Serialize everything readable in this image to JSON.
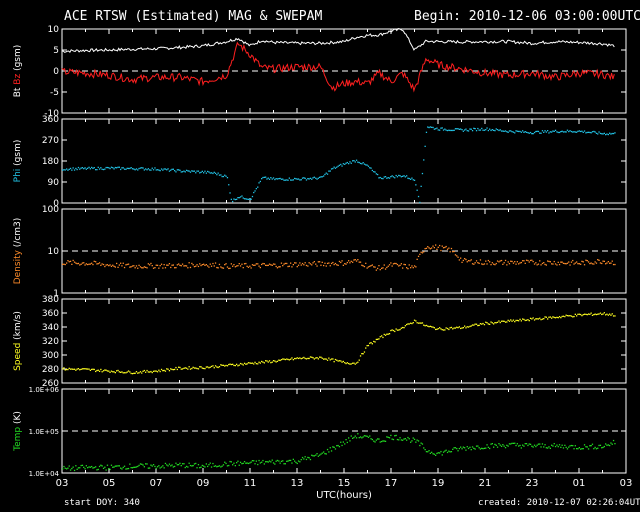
{
  "header": {
    "title": "ACE RTSW (Estimated) MAG & SWEPAM",
    "begin": "Begin: 2010-12-06 03:00:00UTC"
  },
  "footer": {
    "start_doy": "start DOY: 340",
    "created": "created: 2010-12-07 02:26:04UTC"
  },
  "colors": {
    "bt": "#ffffff",
    "bz": "#ff2020",
    "phi": "#22c3e6",
    "density": "#ff8c2a",
    "speed": "#ffff20",
    "temp": "#22dd22",
    "axis": "#ffffff",
    "dash": "#ffffff"
  },
  "chart_data": [
    {
      "type": "line",
      "panel": "mag",
      "ylabel_parts": [
        "Bt",
        "Bz",
        "(gsm)"
      ],
      "ylim": [
        -10,
        10
      ],
      "yticks": [
        "10",
        "5",
        "0",
        "-5",
        "-10"
      ],
      "yvals": [
        10,
        5,
        0,
        -5,
        -10
      ],
      "dashed_y": 0,
      "series": [
        {
          "name": "Bt",
          "x": [
            3,
            4,
            5,
            6,
            7,
            8,
            9,
            10,
            10.5,
            11,
            11.5,
            12,
            13,
            14,
            15,
            15.5,
            16,
            16.5,
            17,
            17.5,
            18,
            18.5,
            19,
            20,
            21,
            22,
            23,
            24,
            25,
            26,
            26.5
          ],
          "y": [
            4.7,
            4.9,
            5.0,
            5.2,
            5.3,
            5.6,
            6.0,
            7.0,
            7.8,
            6.0,
            7.3,
            6.8,
            6.6,
            6.6,
            7.0,
            8.0,
            8.5,
            8.6,
            9.5,
            10.0,
            5.0,
            7.1,
            7.0,
            6.9,
            7.0,
            7.0,
            6.6,
            7.0,
            6.8,
            6.5,
            6.0
          ]
        },
        {
          "name": "Bz",
          "x": [
            3,
            4,
            5,
            6,
            7,
            8,
            9,
            10,
            10.5,
            11,
            11.5,
            12,
            13,
            14,
            14.5,
            15,
            15.5,
            16,
            16.5,
            17,
            17.5,
            18,
            18.5,
            19,
            20,
            21,
            22,
            23,
            24,
            25,
            26,
            26.5
          ],
          "y": [
            -0.2,
            -0.5,
            -1.0,
            -2.0,
            -1.5,
            -1.5,
            -2.5,
            -1.0,
            6.5,
            4.0,
            0.8,
            0.5,
            1.0,
            1.0,
            -4.0,
            -3.0,
            -2.5,
            -3.0,
            -0.5,
            -2.5,
            -0.5,
            -4.5,
            3.0,
            1.5,
            0.5,
            -0.5,
            -1.0,
            -0.5,
            -1.5,
            -0.5,
            -0.8,
            -1.5
          ]
        }
      ]
    },
    {
      "type": "scatter",
      "panel": "phi",
      "ylabel_parts": [
        "Phi",
        "(gsm)"
      ],
      "ylim": [
        0,
        360
      ],
      "yticks": [
        "360",
        "270",
        "180",
        "90",
        "0"
      ],
      "yvals": [
        360,
        270,
        180,
        90,
        0
      ],
      "series": [
        {
          "name": "Phi",
          "x": [
            3,
            4,
            5,
            6,
            7,
            8,
            9,
            9.5,
            10,
            10.2,
            10.5,
            11,
            11.5,
            12,
            13,
            14,
            14.5,
            15,
            15.5,
            16,
            16.5,
            17,
            17.5,
            18,
            18.2,
            18.5,
            19,
            20,
            21,
            22,
            23,
            24,
            25,
            26,
            26.5
          ],
          "y": [
            148,
            150,
            152,
            150,
            148,
            140,
            135,
            130,
            115,
            10,
            30,
            20,
            110,
            105,
            105,
            110,
            150,
            170,
            185,
            160,
            110,
            115,
            120,
            100,
            10,
            330,
            320,
            315,
            320,
            310,
            305,
            310,
            310,
            300,
            300
          ]
        }
      ]
    },
    {
      "type": "scatter",
      "panel": "density",
      "log": true,
      "ylabel_parts": [
        "Density",
        "(/cm3)"
      ],
      "ylim": [
        1,
        100
      ],
      "yticks": [
        "100",
        "10",
        "1"
      ],
      "yvals": [
        100,
        10,
        1
      ],
      "dashed_y": 10,
      "series": [
        {
          "name": "Density",
          "x": [
            3,
            4,
            5,
            6,
            7,
            8,
            9,
            10,
            11,
            12,
            13,
            14,
            15,
            15.5,
            16,
            16.5,
            17,
            17.5,
            18,
            18.5,
            19,
            19.5,
            20,
            21,
            22,
            23,
            24,
            25,
            26,
            26.5
          ],
          "y": [
            5.5,
            5.3,
            4.8,
            4.5,
            4.6,
            4.6,
            5.0,
            4.5,
            4.6,
            4.7,
            5.0,
            5.1,
            5.4,
            6.0,
            4.5,
            4.0,
            4.8,
            4.5,
            4.2,
            13.5,
            12.5,
            11.0,
            6.0,
            5.5,
            5.5,
            5.5,
            5.5,
            5.3,
            6.0,
            5.5
          ]
        }
      ]
    },
    {
      "type": "scatter",
      "panel": "speed",
      "ylabel_parts": [
        "Speed",
        "(km/s)"
      ],
      "ylim": [
        260,
        380
      ],
      "yticks": [
        "380",
        "360",
        "340",
        "320",
        "300",
        "280",
        "260"
      ],
      "yvals": [
        380,
        360,
        340,
        320,
        300,
        280,
        260
      ],
      "series": [
        {
          "name": "Speed",
          "x": [
            3,
            4,
            5,
            6,
            7,
            8,
            9,
            10,
            11,
            12,
            13,
            14,
            15,
            15.5,
            16,
            16.5,
            17,
            17.5,
            18,
            18.5,
            19,
            20,
            21,
            22,
            23,
            24,
            25,
            26,
            26.5
          ],
          "y": [
            281,
            280,
            278,
            276,
            278,
            282,
            283,
            286,
            289,
            292,
            296,
            297,
            290,
            289,
            315,
            325,
            335,
            340,
            350,
            342,
            338,
            340,
            346,
            349,
            352,
            355,
            358,
            360,
            358
          ]
        }
      ]
    },
    {
      "type": "scatter",
      "panel": "temp",
      "log": true,
      "ylabel_parts": [
        "Temp",
        "(K)"
      ],
      "ylim": [
        10000,
        1000000
      ],
      "yticks": [
        "1.0E+06",
        "1.0E+05",
        "1.0E+04"
      ],
      "yvals": [
        1000000,
        100000,
        10000
      ],
      "dashed_y": 100000,
      "series": [
        {
          "name": "Temp",
          "x": [
            3,
            4,
            5,
            6,
            7,
            8,
            9,
            10,
            11,
            12,
            13,
            14,
            14.5,
            15,
            15.5,
            16,
            16.5,
            17,
            17.5,
            18,
            18.5,
            19,
            20,
            21,
            22,
            23,
            24,
            25,
            26,
            26.5
          ],
          "y": [
            13000,
            14000,
            14000,
            15000,
            15000,
            16000,
            15000,
            17000,
            18000,
            19000,
            20000,
            28000,
            40000,
            55000,
            80000,
            70000,
            60000,
            75000,
            70000,
            60000,
            35000,
            30000,
            40000,
            45000,
            48000,
            46000,
            45000,
            43000,
            45000,
            55000
          ]
        }
      ]
    }
  ],
  "xaxis": {
    "label": "UTC(hours)",
    "ticks": [
      "03",
      "05",
      "07",
      "09",
      "11",
      "13",
      "15",
      "17",
      "19",
      "21",
      "23",
      "01",
      "03"
    ],
    "xlim": [
      3,
      27
    ]
  }
}
